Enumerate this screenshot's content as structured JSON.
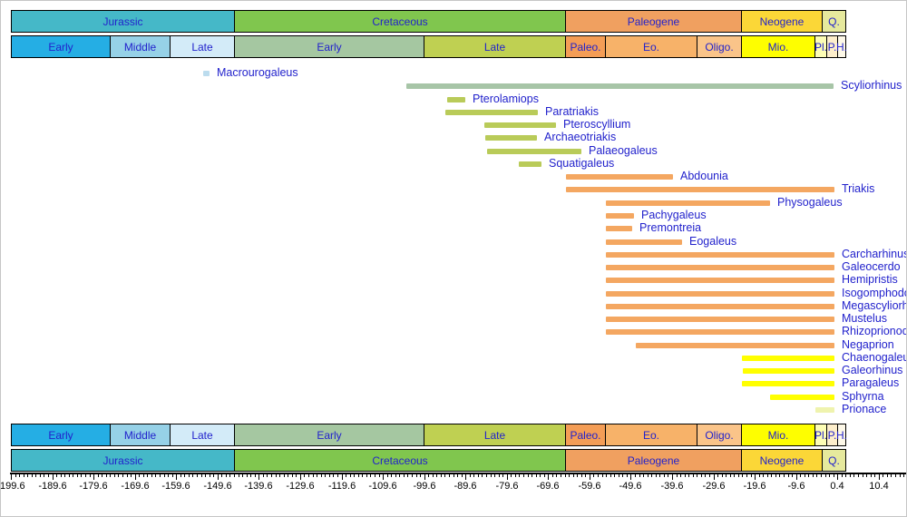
{
  "colors": {
    "label_text": "#2222cc",
    "tick_text": "#000000",
    "axis": "#000000",
    "background": "#ffffff",
    "groups": {
      "jurassic_point": "#bcdcee",
      "early_cretaceous": "#a7c5a7",
      "late_cretaceous": "#b9cb59",
      "paleogene": "#f4a761",
      "neogene": "#ffff00",
      "recent_pale": "#eff3ae"
    }
  },
  "chart_data": {
    "type": "bar",
    "subtype": "stratigraphic-range-timeline",
    "title": "",
    "xlabel": "",
    "ylabel": "",
    "x_axis": {
      "unit": "Ma",
      "min": -199.6,
      "max": 17.2,
      "minor_tick_step": 1,
      "major_tick_step": 10,
      "tick_labels": [
        "-199.6",
        "-189.6",
        "-179.6",
        "-169.6",
        "-159.6",
        "-149.6",
        "-139.6",
        "-129.6",
        "-119.6",
        "-109.6",
        "-99.6",
        "-89.6",
        "-79.6",
        "-69.6",
        "-59.6",
        "-49.6",
        "-39.6",
        "-29.6",
        "-19.6",
        "-9.6",
        "0.4",
        "10.4"
      ]
    },
    "periods": [
      {
        "name": "Jurassic",
        "start": -199.6,
        "end": -145.6,
        "color": "#45b8c8"
      },
      {
        "name": "Cretaceous",
        "start": -145.6,
        "end": -65.5,
        "color": "#80c64e"
      },
      {
        "name": "Paleogene",
        "start": -65.5,
        "end": -23.0,
        "color": "#f0a060"
      },
      {
        "name": "Neogene",
        "start": -23.0,
        "end": -3.4,
        "color": "#fbd737"
      },
      {
        "name": "Q.",
        "start": -3.4,
        "end": 2.3,
        "color": "#e6e99d"
      }
    ],
    "epochs": [
      {
        "name": "Early",
        "start": -199.6,
        "end": -175.6,
        "color": "#25aee4"
      },
      {
        "name": "Middle",
        "start": -175.6,
        "end": -161.2,
        "color": "#96d1e7"
      },
      {
        "name": "Late",
        "start": -161.2,
        "end": -145.6,
        "color": "#d3ebf8"
      },
      {
        "name": "Early",
        "start": -145.6,
        "end": -99.7,
        "color": "#a5c7a1"
      },
      {
        "name": "Late",
        "start": -99.7,
        "end": -65.5,
        "color": "#bfd052"
      },
      {
        "name": "Paleo.",
        "start": -65.5,
        "end": -55.8,
        "color": "#f49d56"
      },
      {
        "name": "Eo.",
        "start": -55.8,
        "end": -33.7,
        "color": "#f7b269"
      },
      {
        "name": "Oligo.",
        "start": -33.7,
        "end": -23.0,
        "color": "#fac489"
      },
      {
        "name": "Mio.",
        "start": -23.0,
        "end": -5.1,
        "color": "#fefe00"
      },
      {
        "name": "Pl.",
        "start": -5.1,
        "end": -2.3,
        "color": "#fdfdb5"
      },
      {
        "name": "P.",
        "start": -2.3,
        "end": 0.3,
        "color": "#fdeecb"
      },
      {
        "name": "H.",
        "start": 0.3,
        "end": 2.3,
        "color": "#fdf8e8"
      }
    ],
    "taxa": [
      {
        "name": "Macrourogaleus",
        "start": -153.0,
        "end": -151.5,
        "group": "jurassic_point"
      },
      {
        "name": "Scyliorhinus",
        "start": -103.9,
        "end": -0.5,
        "group": "early_cretaceous"
      },
      {
        "name": "Pterolamiops",
        "start": -94.0,
        "end": -89.6,
        "group": "late_cretaceous"
      },
      {
        "name": "Paratriakis",
        "start": -94.5,
        "end": -72.1,
        "group": "late_cretaceous"
      },
      {
        "name": "Pteroscyllium",
        "start": -85.0,
        "end": -67.7,
        "group": "late_cretaceous"
      },
      {
        "name": "Archaeotriakis",
        "start": -84.8,
        "end": -72.3,
        "group": "late_cretaceous"
      },
      {
        "name": "Palaeogaleus",
        "start": -84.4,
        "end": -61.5,
        "group": "late_cretaceous"
      },
      {
        "name": "Squatigaleus",
        "start": -76.7,
        "end": -71.2,
        "group": "late_cretaceous"
      },
      {
        "name": "Abdounia",
        "start": -65.3,
        "end": -39.4,
        "group": "paleogene"
      },
      {
        "name": "Triakis",
        "start": -65.3,
        "end": -0.3,
        "group": "paleogene"
      },
      {
        "name": "Physogaleus",
        "start": -55.6,
        "end": -15.9,
        "group": "paleogene"
      },
      {
        "name": "Pachygaleus",
        "start": -55.6,
        "end": -48.8,
        "group": "paleogene"
      },
      {
        "name": "Premontreia",
        "start": -55.6,
        "end": -49.3,
        "group": "paleogene"
      },
      {
        "name": "Eogaleus",
        "start": -55.6,
        "end": -37.2,
        "group": "paleogene"
      },
      {
        "name": "Carcharhinus",
        "start": -55.6,
        "end": -0.3,
        "group": "paleogene"
      },
      {
        "name": "Galeocerdo",
        "start": -55.6,
        "end": -0.3,
        "group": "paleogene"
      },
      {
        "name": "Hemipristis",
        "start": -55.6,
        "end": -0.3,
        "group": "paleogene"
      },
      {
        "name": "Isogomphodon",
        "start": -55.6,
        "end": -0.3,
        "group": "paleogene"
      },
      {
        "name": "Megascyliorhinus",
        "start": -55.6,
        "end": -0.3,
        "group": "paleogene"
      },
      {
        "name": "Mustelus",
        "start": -55.6,
        "end": -0.3,
        "group": "paleogene"
      },
      {
        "name": "Rhizoprionodon",
        "start": -55.6,
        "end": -0.3,
        "group": "paleogene"
      },
      {
        "name": "Negaprion",
        "start": -48.4,
        "end": -0.3,
        "group": "paleogene"
      },
      {
        "name": "Chaenogaleus",
        "start": -22.7,
        "end": -0.3,
        "group": "neogene"
      },
      {
        "name": "Galeorhinus",
        "start": -22.5,
        "end": -0.3,
        "group": "neogene"
      },
      {
        "name": "Paragaleus",
        "start": -22.7,
        "end": -0.3,
        "group": "neogene"
      },
      {
        "name": "Sphyrna",
        "start": -15.9,
        "end": -0.3,
        "group": "neogene"
      },
      {
        "name": "Prionace",
        "start": -4.9,
        "end": -0.3,
        "group": "recent_pale"
      }
    ],
    "layout_hints": {
      "grid": "off",
      "legend": "none",
      "header_rows": [
        "periods",
        "epochs"
      ],
      "footer_rows": [
        "epochs",
        "periods"
      ]
    }
  }
}
